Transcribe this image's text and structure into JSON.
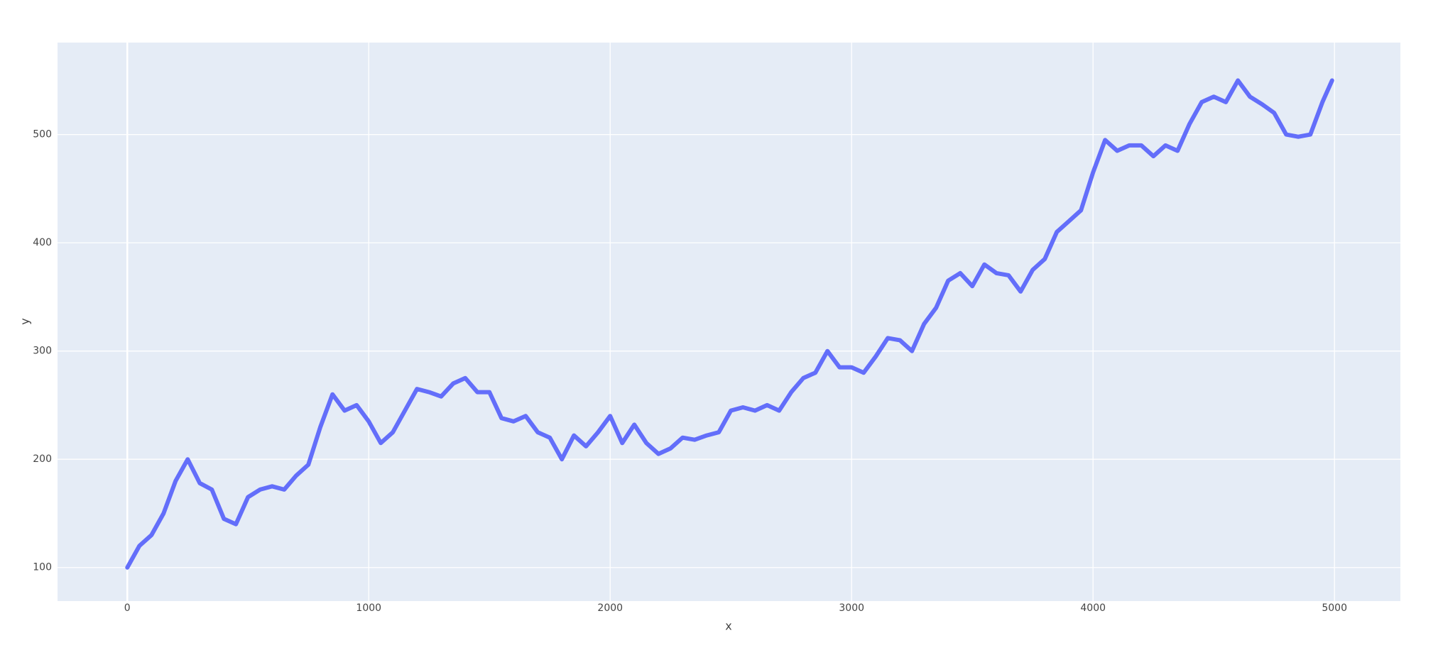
{
  "chart_data": {
    "type": "line",
    "x_label": "x",
    "y_label": "y",
    "x": [
      0,
      50,
      100,
      150,
      200,
      250,
      300,
      350,
      400,
      450,
      500,
      550,
      600,
      650,
      700,
      750,
      800,
      850,
      900,
      950,
      1000,
      1050,
      1100,
      1150,
      1200,
      1250,
      1300,
      1350,
      1400,
      1450,
      1500,
      1550,
      1600,
      1650,
      1700,
      1750,
      1800,
      1850,
      1900,
      1950,
      2000,
      2050,
      2100,
      2150,
      2200,
      2250,
      2300,
      2350,
      2400,
      2450,
      2500,
      2550,
      2600,
      2650,
      2700,
      2750,
      2800,
      2850,
      2900,
      2950,
      3000,
      3050,
      3100,
      3150,
      3200,
      3250,
      3300,
      3350,
      3400,
      3450,
      3500,
      3550,
      3600,
      3650,
      3700,
      3750,
      3800,
      3850,
      3900,
      3950,
      4000,
      4050,
      4100,
      4150,
      4200,
      4250,
      4300,
      4350,
      4400,
      4450,
      4500,
      4550,
      4600,
      4650,
      4700,
      4750,
      4800,
      4850,
      4900,
      4950,
      4990
    ],
    "series": [
      {
        "name": "y",
        "color": "#636efa",
        "values": [
          100,
          120,
          130,
          150,
          180,
          200,
          178,
          172,
          145,
          140,
          165,
          172,
          175,
          172,
          185,
          195,
          230,
          260,
          245,
          250,
          235,
          215,
          225,
          245,
          265,
          262,
          258,
          270,
          275,
          262,
          262,
          238,
          235,
          240,
          225,
          220,
          200,
          222,
          212,
          225,
          240,
          215,
          232,
          215,
          205,
          210,
          220,
          218,
          222,
          225,
          245,
          248,
          245,
          250,
          245,
          262,
          275,
          280,
          300,
          285,
          285,
          280,
          295,
          312,
          310,
          300,
          325,
          340,
          365,
          372,
          360,
          380,
          372,
          370,
          355,
          375,
          385,
          410,
          420,
          430,
          465,
          495,
          485,
          490,
          490,
          480,
          490,
          485,
          510,
          530,
          535,
          530,
          550,
          535,
          528,
          520,
          500,
          498,
          500,
          530,
          550
        ]
      }
    ],
    "xlim": [
      -289,
      5273
    ],
    "ylim": [
      69,
      585
    ],
    "xticks": [
      0,
      1000,
      2000,
      3000,
      4000,
      5000
    ],
    "yticks": [
      100,
      200,
      300,
      400,
      500
    ],
    "grid": true
  }
}
